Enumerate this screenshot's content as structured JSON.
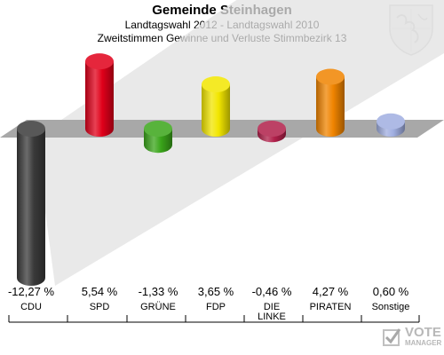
{
  "header": {
    "title": "Gemeinde Steinhagen",
    "subtitle1": "Landtagswahl 2012 - Landtagswahl 2010",
    "subtitle2": "Zweitstimmen Gewinne und Verluste Stimmbezirk 13"
  },
  "watermark": {
    "line1": "VOTE",
    "line2": "MANAGER"
  },
  "chart_data": {
    "type": "bar",
    "categories": [
      "CDU",
      "SPD",
      "GRÜNE",
      "FDP",
      "DIE LINKE",
      "PIRATEN",
      "Sonstige"
    ],
    "values": [
      -12.27,
      5.54,
      -1.33,
      3.65,
      -0.46,
      4.27,
      0.6
    ],
    "value_labels": [
      "-12,27 %",
      "5,54 %",
      "-1,33 %",
      "3,65 %",
      "-0,46 %",
      "4,27 %",
      "0,60 %"
    ],
    "colors": [
      "#3a3a3a",
      "#e0001a",
      "#3aa51a",
      "#f2e600",
      "#b0204a",
      "#f08400",
      "#a0aee0"
    ],
    "ylim": [
      -12.27,
      5.54
    ],
    "grid": false,
    "title": "Landtagswahl 2012 - Landtagswahl 2010",
    "xlabel": "",
    "ylabel": ""
  }
}
